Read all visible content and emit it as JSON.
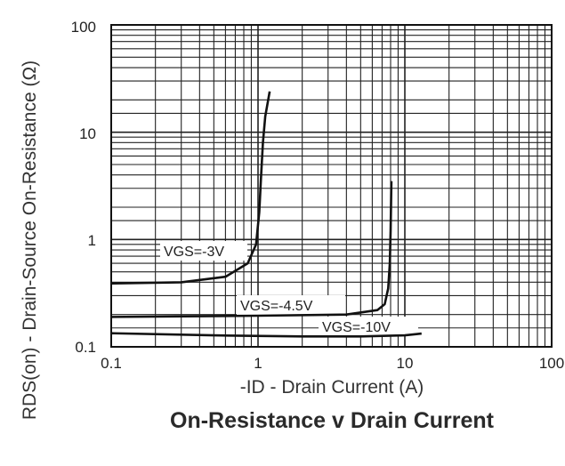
{
  "chart_data": {
    "type": "line",
    "title": "On-Resistance v Drain Current",
    "xlabel": "-ID - Drain Current (A)",
    "ylabel": "RDS(on) - Drain-Source On-Resistance (Ω)",
    "x_scale": "log",
    "y_scale": "log",
    "xlim": [
      0.1,
      100
    ],
    "ylim": [
      0.1,
      100
    ],
    "grid": true,
    "x_ticks": [
      "0.1",
      "1",
      "10",
      "100"
    ],
    "y_ticks": [
      "0.1",
      "1",
      "10",
      "100"
    ],
    "series": [
      {
        "name": "VGS=-3V",
        "x": [
          0.1,
          0.3,
          0.6,
          0.85,
          0.97,
          1.02,
          1.05,
          1.08,
          1.12,
          1.2
        ],
        "y": [
          0.39,
          0.4,
          0.45,
          0.6,
          0.9,
          1.8,
          4.0,
          8.0,
          14,
          24
        ]
      },
      {
        "name": "VGS=-4.5V",
        "x": [
          0.1,
          1,
          4,
          6.5,
          7.3,
          7.7,
          7.9,
          8.0,
          8.1
        ],
        "y": [
          0.19,
          0.195,
          0.2,
          0.22,
          0.25,
          0.35,
          0.6,
          1.2,
          3.5
        ]
      },
      {
        "name": "VGS=-10V",
        "x": [
          0.1,
          0.5,
          2,
          5,
          10,
          13
        ],
        "y": [
          0.134,
          0.128,
          0.125,
          0.125,
          0.128,
          0.133
        ]
      }
    ]
  }
}
